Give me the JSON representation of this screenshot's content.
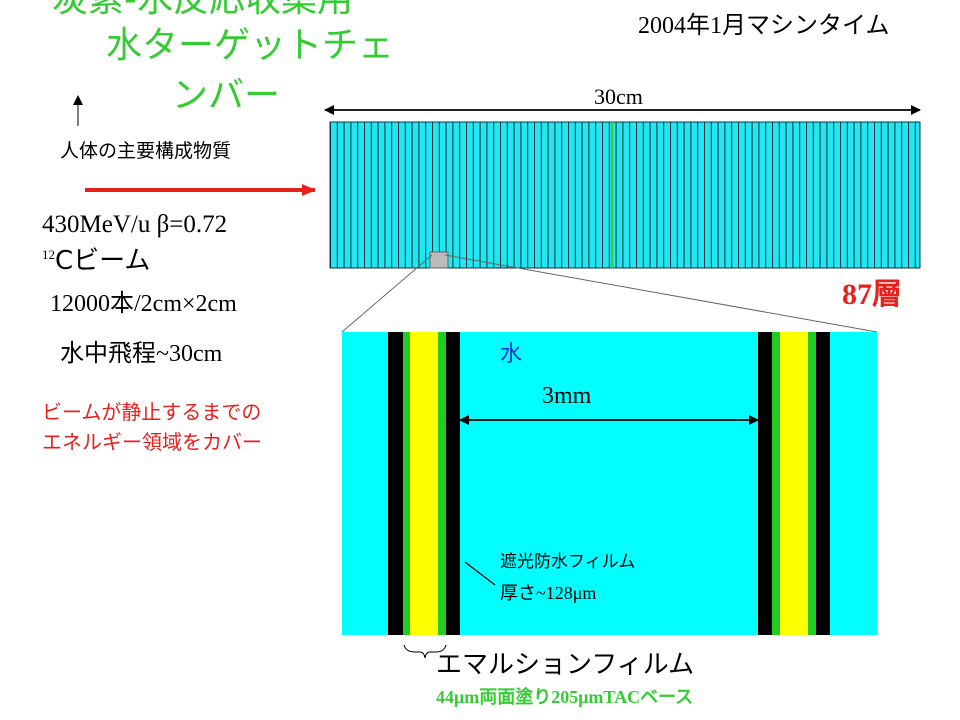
{
  "title": {
    "lines": [
      "炭素-水反応収集用",
      "水ターゲットチェ",
      "ンバー"
    ]
  },
  "date": "2004年1月マシンタイム",
  "stack": {
    "length": "30cm",
    "layers": "87層"
  },
  "composition_note": "人体の主要構成物質",
  "beam": {
    "energy": "430MeV/u  β=0.72",
    "mass_number": "12",
    "name": "Cビーム",
    "count": "12000本/2cm×2cm",
    "range": "水中飛程~30cm"
  },
  "coverage_note": {
    "lines": [
      "ビームが静止するまでの",
      "エネルギー領域をカバー"
    ]
  },
  "detail": {
    "water": "水",
    "gap": "3mm",
    "film_label": {
      "lines": [
        "遮光防水フィルム",
        "厚さ~128μm"
      ]
    },
    "emulsion": "エマルションフィルム",
    "emulsion_spec": "44μm両面塗り205μmTACベース"
  }
}
